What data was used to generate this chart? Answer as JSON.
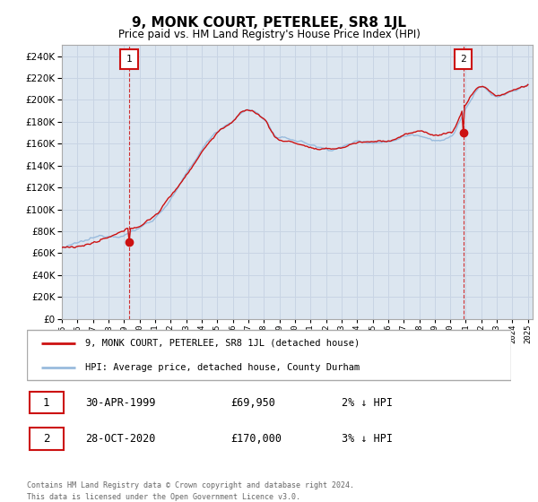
{
  "title": "9, MONK COURT, PETERLEE, SR8 1JL",
  "subtitle": "Price paid vs. HM Land Registry's House Price Index (HPI)",
  "hpi_label": "HPI: Average price, detached house, County Durham",
  "property_label": "9, MONK COURT, PETERLEE, SR8 1JL (detached house)",
  "sale1_date": "30-APR-1999",
  "sale1_price": 69950,
  "sale1_hpi_text": "2% ↓ HPI",
  "sale2_date": "28-OCT-2020",
  "sale2_price": 170000,
  "sale2_hpi_text": "3% ↓ HPI",
  "hpi_color": "#99bbdd",
  "property_color": "#cc1111",
  "annotation_color": "#cc1111",
  "grid_color": "#c8d4e4",
  "bg_color": "#dce6f0",
  "ylim_min": 0,
  "ylim_max": 250000,
  "xlim_min": 1995,
  "xlim_max": 2025.3,
  "sale1_x": 1999.33,
  "sale2_x": 2020.83,
  "footer": "Contains HM Land Registry data © Crown copyright and database right 2024.\nThis data is licensed under the Open Government Licence v3.0.",
  "xticks": [
    1995,
    1996,
    1997,
    1998,
    1999,
    2000,
    2001,
    2002,
    2003,
    2004,
    2005,
    2006,
    2007,
    2008,
    2009,
    2010,
    2011,
    2012,
    2013,
    2014,
    2015,
    2016,
    2017,
    2018,
    2019,
    2020,
    2021,
    2022,
    2023,
    2024,
    2025
  ],
  "hpi_annual": [
    65000,
    67000,
    70000,
    73000,
    77000,
    83000,
    93000,
    110000,
    130000,
    152000,
    170000,
    181000,
    190000,
    182000,
    163000,
    161000,
    157000,
    153000,
    155000,
    160000,
    161000,
    162000,
    168000,
    170000,
    168000,
    170000,
    196000,
    213000,
    205000,
    209000,
    214000
  ]
}
